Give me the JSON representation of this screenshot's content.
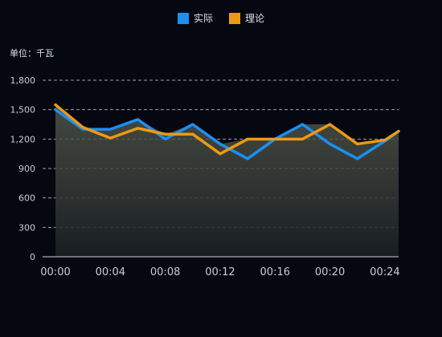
{
  "chart_data": {
    "type": "line",
    "unit_label": "单位：千瓦",
    "x": [
      "00:00",
      "00:02",
      "00:04",
      "00:06",
      "00:08",
      "00:10",
      "00:12",
      "00:14",
      "00:16",
      "00:18",
      "00:20",
      "00:22",
      "00:24",
      "00:25"
    ],
    "x_tick_labels": [
      "00:00",
      "00:04",
      "00:08",
      "00:12",
      "00:16",
      "00:20",
      "00:24"
    ],
    "y_tick_labels": [
      "0",
      "300",
      "600",
      "900",
      "1,200",
      "1,500",
      "1,800"
    ],
    "ylim": [
      0,
      1800
    ],
    "grid": true,
    "legend_position": "top-center",
    "series": [
      {
        "name": "实际",
        "color": "#1b8ff2",
        "values": [
          1500,
          1300,
          1300,
          1400,
          1200,
          1350,
          1150,
          1000,
          1200,
          1350,
          1150,
          1000,
          1180,
          1280
        ]
      },
      {
        "name": "理论",
        "color": "#ec9a14",
        "values": [
          1550,
          1320,
          1210,
          1310,
          1250,
          1250,
          1050,
          1200,
          1200,
          1200,
          1350,
          1150,
          1190,
          1280
        ]
      }
    ]
  }
}
